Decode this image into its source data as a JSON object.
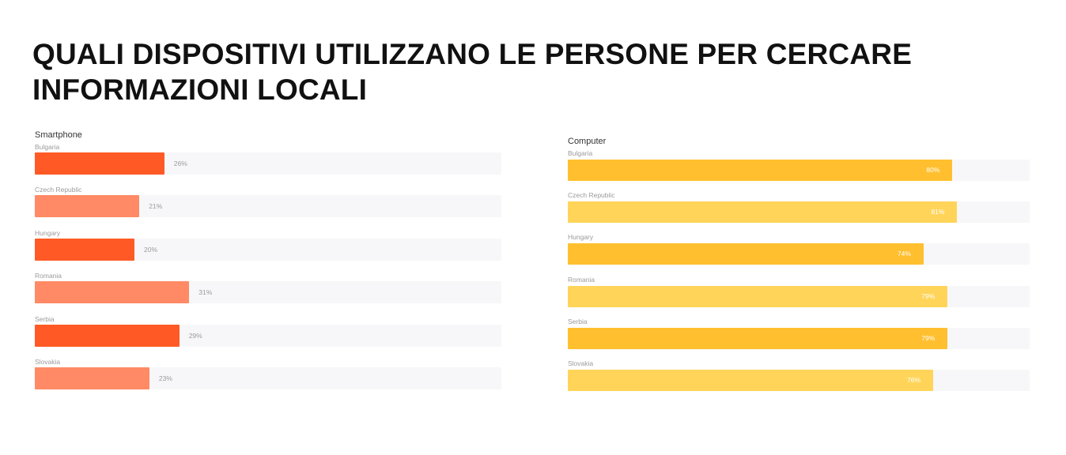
{
  "title": "QUALI DISPOSITIVI UTILIZZANO LE PERSONE PER CERCARE INFORMAZIONI LOCALI",
  "colors": {
    "smartphone_dark": "#ff5a25",
    "smartphone_light": "#ff8a65",
    "computer_dark": "#ffbf2e",
    "computer_light": "#ffd459",
    "track": "#f7f7f9"
  },
  "chart_data": [
    {
      "type": "bar",
      "orientation": "horizontal",
      "title": "Smartphone",
      "categories": [
        "Bulgaria",
        "Czech Republic",
        "Hungary",
        "Romania",
        "Serbia",
        "Slovakia"
      ],
      "values": [
        26,
        21,
        20,
        31,
        29,
        23
      ],
      "value_labels": [
        "26%",
        "21%",
        "20%",
        "31%",
        "29%",
        "23%"
      ],
      "xlim": [
        0,
        100
      ],
      "grid": false,
      "legend": "none"
    },
    {
      "type": "bar",
      "orientation": "horizontal",
      "title": "Computer",
      "categories": [
        "Bulgaria",
        "Czech Republic",
        "Hungary",
        "Romania",
        "Serbia",
        "Slovakia"
      ],
      "values": [
        80,
        81,
        74,
        79,
        79,
        76
      ],
      "value_labels": [
        "80%",
        "81%",
        "74%",
        "79%",
        "79%",
        "76%"
      ],
      "xlim": [
        0,
        100
      ],
      "grid": false,
      "legend": "none"
    }
  ]
}
